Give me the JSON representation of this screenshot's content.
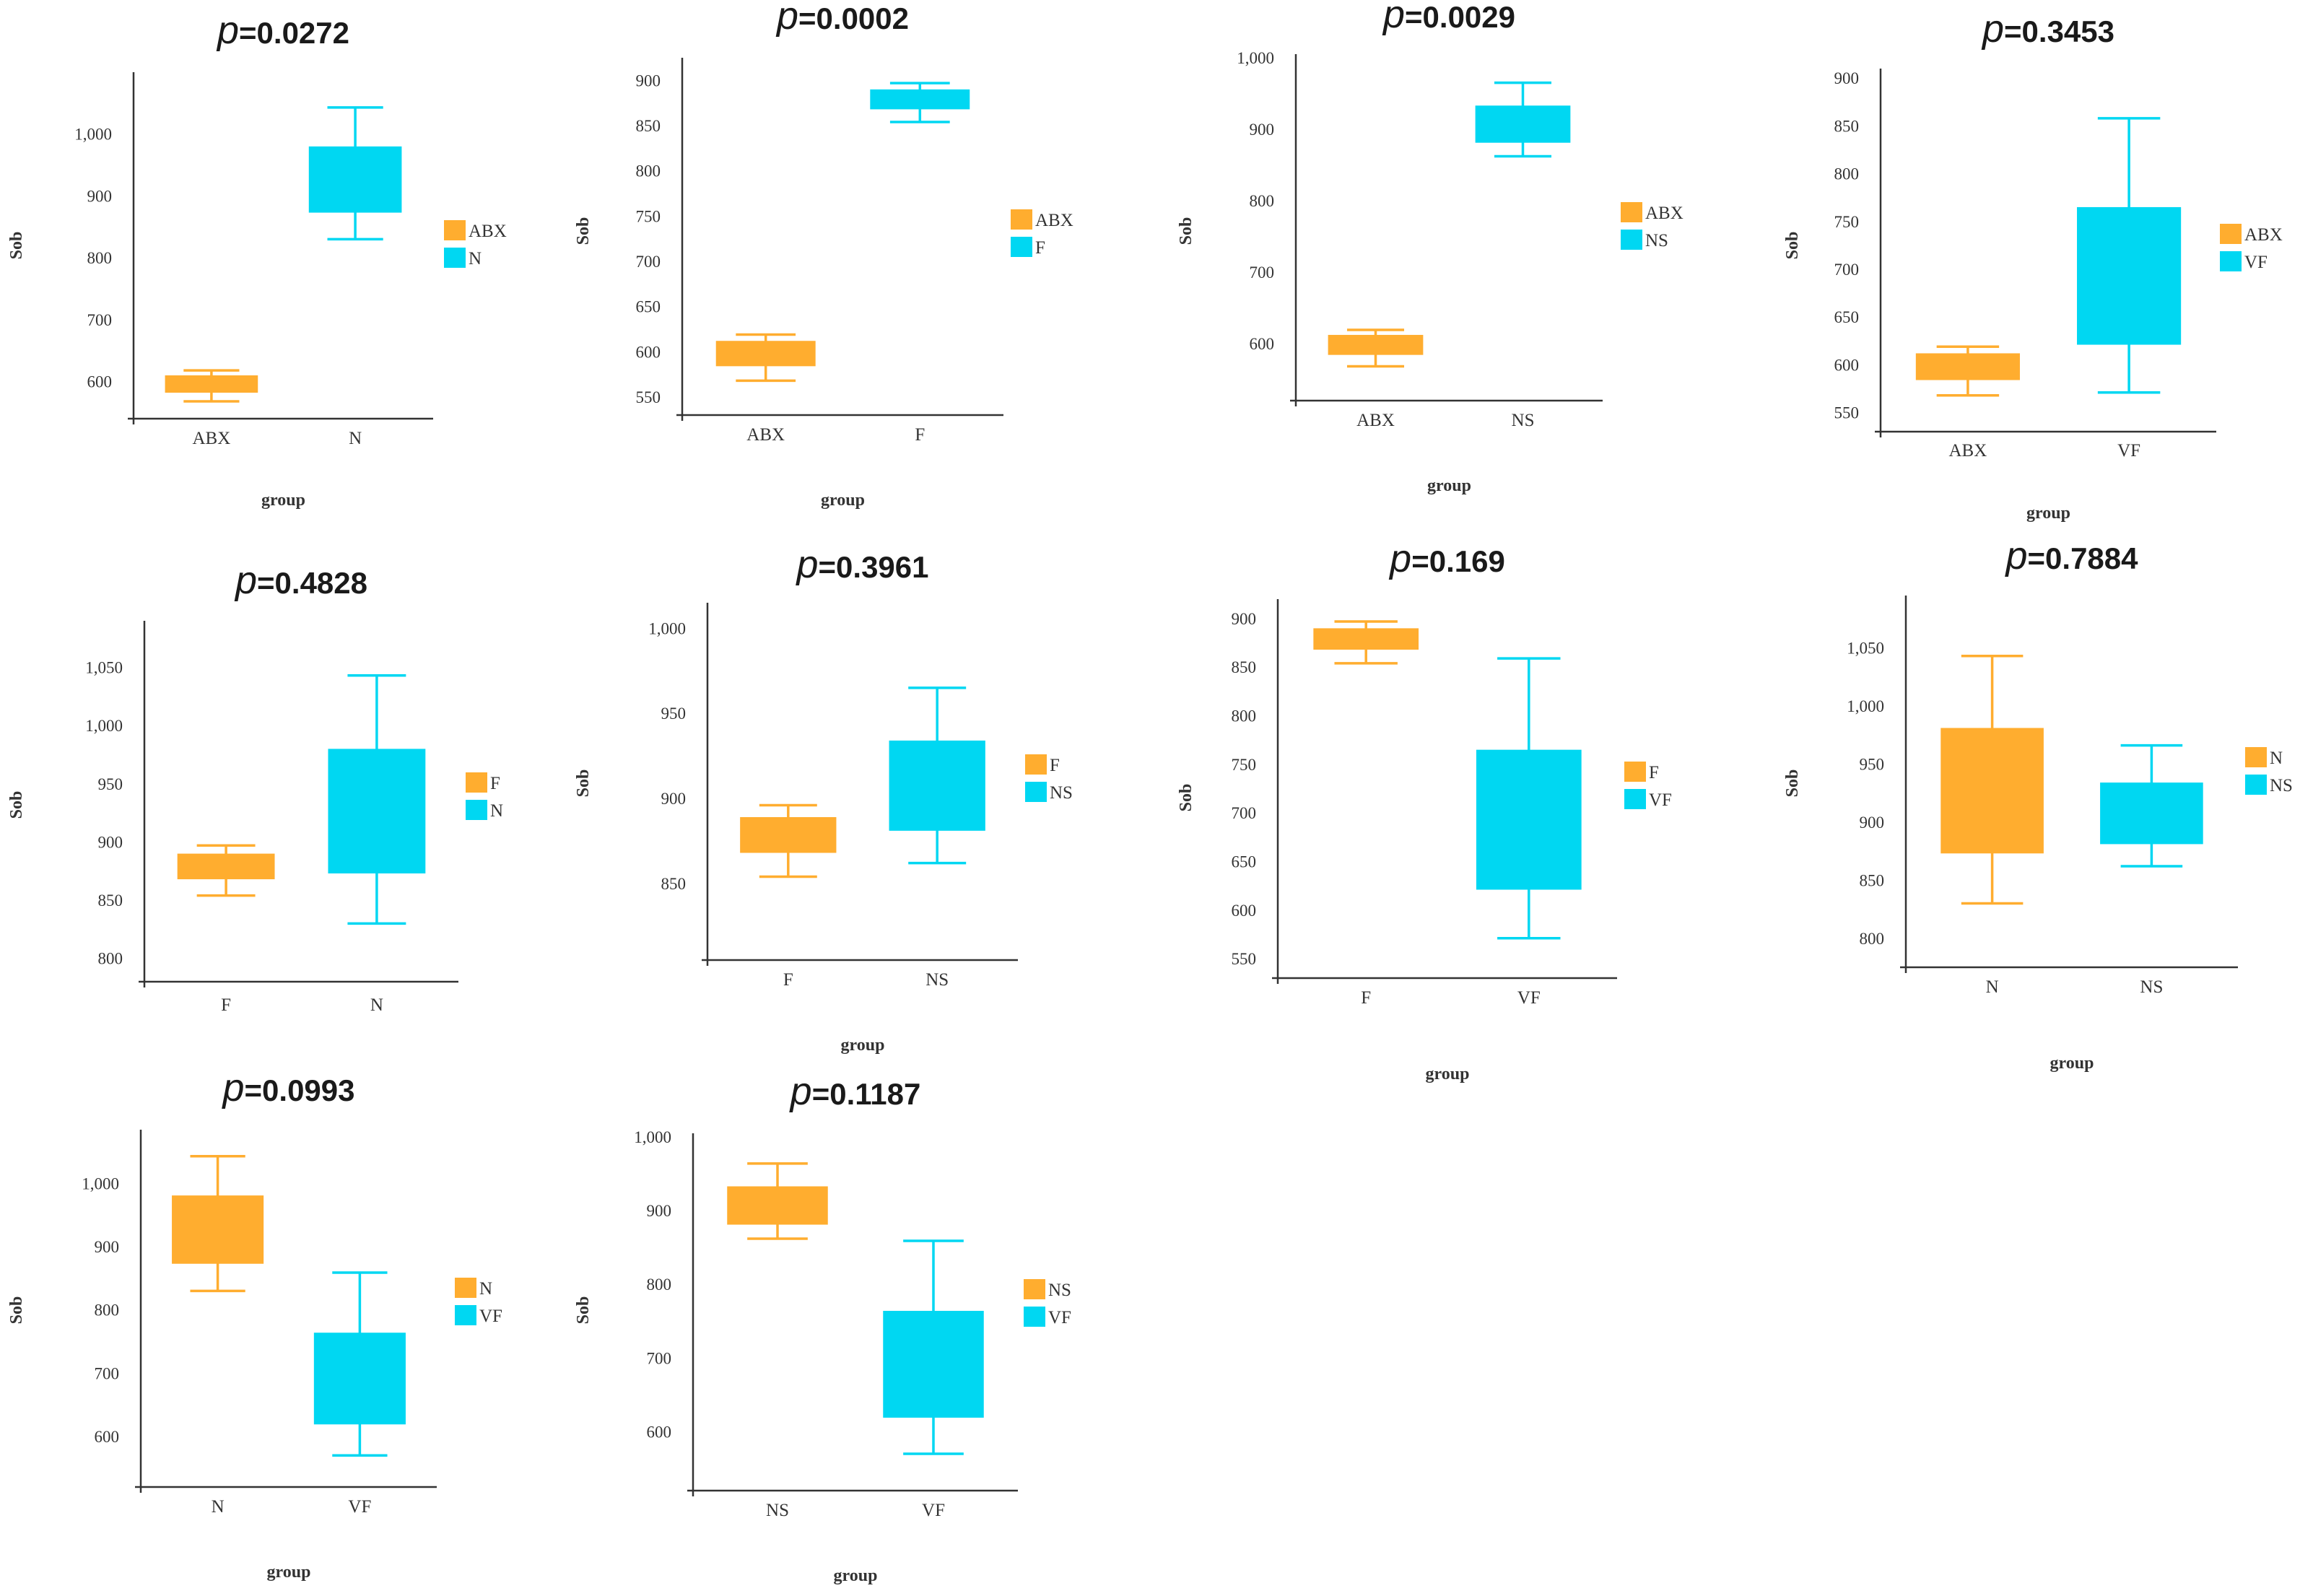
{
  "colors": {
    "orange": "#ffad2f",
    "cyan": "#00d7f2",
    "axis": "#333333"
  },
  "chart_data": [
    {
      "type": "box",
      "title_p": "p",
      "title_value": "=0.0272",
      "xlabel": "group",
      "ylabel": "Sob",
      "yticks": [
        "600",
        "700",
        "800",
        "900",
        "1,000"
      ],
      "ylim": [
        540,
        1100
      ],
      "categories": [
        "ABX",
        "N"
      ],
      "legend": [
        "ABX",
        "N"
      ],
      "boxes": [
        {
          "min": 568,
          "q1": 582,
          "q3": 610,
          "max": 618
        },
        {
          "min": 830,
          "q1": 873,
          "q3": 980,
          "max": 1043
        }
      ]
    },
    {
      "type": "box",
      "title_p": "p",
      "title_value": "=0.0002",
      "xlabel": "group",
      "ylabel": "Sob",
      "yticks": [
        "550",
        "600",
        "650",
        "700",
        "750",
        "800",
        "850",
        "900"
      ],
      "ylim": [
        530,
        925
      ],
      "categories": [
        "ABX",
        "F"
      ],
      "legend": [
        "ABX",
        "F"
      ],
      "boxes": [
        {
          "min": 568,
          "q1": 584,
          "q3": 612,
          "max": 619
        },
        {
          "min": 854,
          "q1": 868,
          "q3": 890,
          "max": 897
        }
      ]
    },
    {
      "type": "box",
      "title_p": "p",
      "title_value": "=0.0029",
      "xlabel": "group",
      "ylabel": "Sob",
      "yticks": [
        "600",
        "700",
        "800",
        "900",
        "1,000"
      ],
      "ylim": [
        520,
        1005
      ],
      "categories": [
        "ABX",
        "NS"
      ],
      "legend": [
        "ABX",
        "NS"
      ],
      "boxes": [
        {
          "min": 568,
          "q1": 584,
          "q3": 612,
          "max": 619
        },
        {
          "min": 862,
          "q1": 881,
          "q3": 933,
          "max": 965
        }
      ]
    },
    {
      "type": "box",
      "title_p": "p",
      "title_value": "=0.3453",
      "xlabel": "group",
      "ylabel": "Sob",
      "yticks": [
        "550",
        "600",
        "650",
        "700",
        "750",
        "800",
        "850",
        "900"
      ],
      "ylim": [
        530,
        910
      ],
      "categories": [
        "ABX",
        "VF"
      ],
      "legend": [
        "ABX",
        "VF"
      ],
      "boxes": [
        {
          "min": 568,
          "q1": 584,
          "q3": 612,
          "max": 619
        },
        {
          "min": 571,
          "q1": 621,
          "q3": 765,
          "max": 858
        }
      ]
    },
    {
      "type": "box",
      "title_p": "p",
      "title_value": "=0.4828",
      "xlabel": "",
      "ylabel": "Sob",
      "yticks": [
        "800",
        "850",
        "900",
        "950",
        "1,000",
        "1,050"
      ],
      "ylim": [
        780,
        1090
      ],
      "categories": [
        "F",
        "N"
      ],
      "legend": [
        "F",
        "N"
      ],
      "boxes": [
        {
          "min": 854,
          "q1": 868,
          "q3": 890,
          "max": 897
        },
        {
          "min": 830,
          "q1": 873,
          "q3": 980,
          "max": 1043
        }
      ]
    },
    {
      "type": "box",
      "title_p": "p",
      "title_value": "=0.3961",
      "xlabel": "group",
      "ylabel": "Sob",
      "yticks": [
        "850",
        "900",
        "950",
        "1,000"
      ],
      "ylim": [
        805,
        1015
      ],
      "categories": [
        "F",
        "NS"
      ],
      "legend": [
        "F",
        "NS"
      ],
      "boxes": [
        {
          "min": 854,
          "q1": 868,
          "q3": 889,
          "max": 896
        },
        {
          "min": 862,
          "q1": 881,
          "q3": 934,
          "max": 965
        }
      ]
    },
    {
      "type": "box",
      "title_p": "p",
      "title_value": "=0.169",
      "xlabel": "group",
      "ylabel": "Sob",
      "yticks": [
        "550",
        "600",
        "650",
        "700",
        "750",
        "800",
        "850",
        "900"
      ],
      "ylim": [
        530,
        920
      ],
      "categories": [
        "F",
        "VF"
      ],
      "legend": [
        "F",
        "VF"
      ],
      "boxes": [
        {
          "min": 854,
          "q1": 868,
          "q3": 890,
          "max": 897
        },
        {
          "min": 571,
          "q1": 621,
          "q3": 765,
          "max": 859
        }
      ]
    },
    {
      "type": "box",
      "title_p": "p",
      "title_value": "=0.7884",
      "xlabel": "group",
      "ylabel": "Sob",
      "yticks": [
        "800",
        "850",
        "900",
        "950",
        "1,000",
        "1,050"
      ],
      "ylim": [
        775,
        1095
      ],
      "categories": [
        "N",
        "NS"
      ],
      "legend": [
        "N",
        "NS"
      ],
      "boxes": [
        {
          "min": 830,
          "q1": 873,
          "q3": 981,
          "max": 1043
        },
        {
          "min": 862,
          "q1": 881,
          "q3": 934,
          "max": 966
        }
      ]
    },
    {
      "type": "box",
      "title_p": "p",
      "title_value": "=0.0993",
      "xlabel": "group",
      "ylabel": "Sob",
      "yticks": [
        "600",
        "700",
        "800",
        "900",
        "1,000"
      ],
      "ylim": [
        520,
        1085
      ],
      "categories": [
        "N",
        "VF"
      ],
      "legend": [
        "N",
        "VF"
      ],
      "boxes": [
        {
          "min": 830,
          "q1": 873,
          "q3": 981,
          "max": 1043
        },
        {
          "min": 570,
          "q1": 619,
          "q3": 764,
          "max": 859
        }
      ]
    },
    {
      "type": "box",
      "title_p": "p",
      "title_value": "=0.1187",
      "xlabel": "group",
      "ylabel": "Sob",
      "yticks": [
        "600",
        "700",
        "800",
        "900",
        "1,000"
      ],
      "ylim": [
        520,
        1005
      ],
      "categories": [
        "NS",
        "VF"
      ],
      "legend": [
        "NS",
        "VF"
      ],
      "boxes": [
        {
          "min": 862,
          "q1": 881,
          "q3": 933,
          "max": 964
        },
        {
          "min": 570,
          "q1": 619,
          "q3": 764,
          "max": 859
        }
      ]
    }
  ]
}
